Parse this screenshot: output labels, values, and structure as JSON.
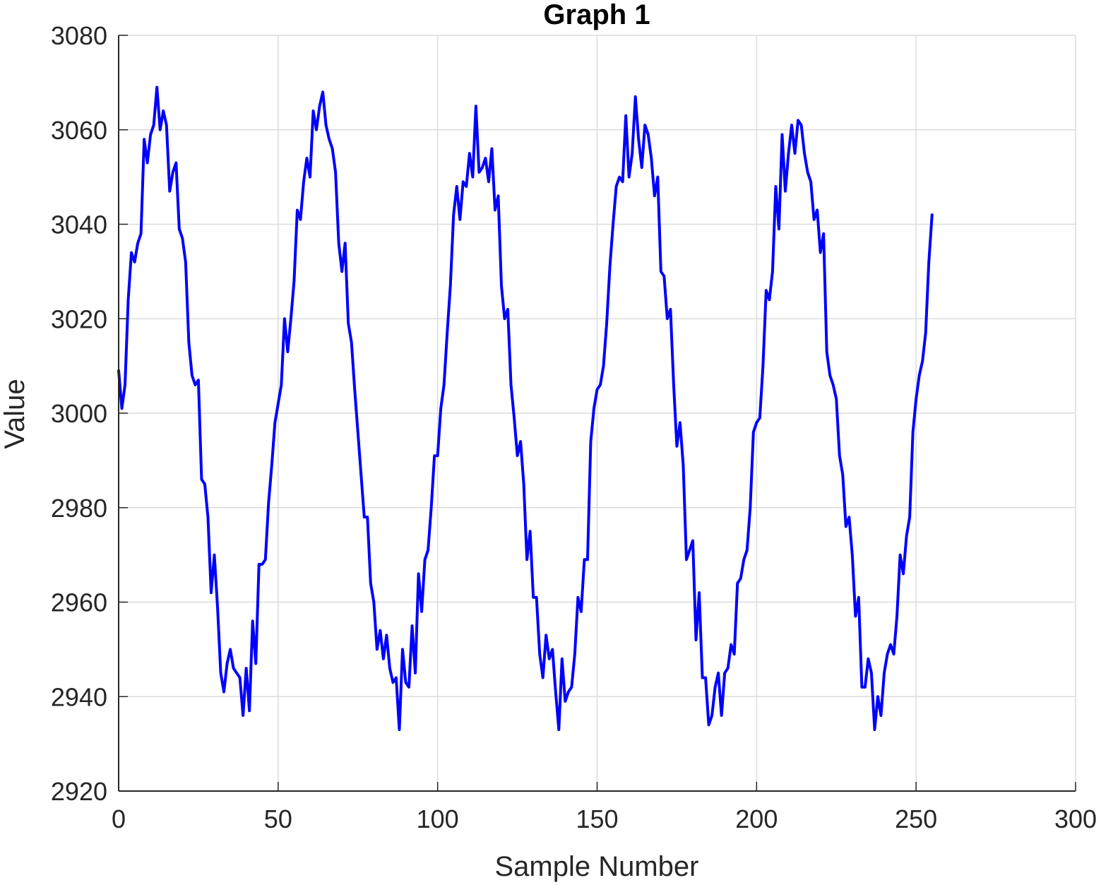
{
  "chart_data": {
    "type": "line",
    "title": "Graph  1",
    "xlabel": "Sample Number",
    "ylabel": "Value",
    "xlim": [
      0,
      300
    ],
    "ylim": [
      2920,
      3080
    ],
    "xticks": [
      0,
      50,
      100,
      150,
      200,
      250,
      300
    ],
    "yticks": [
      2920,
      2940,
      2960,
      2980,
      3000,
      3020,
      3040,
      3060,
      3080
    ],
    "grid": true,
    "legend": "none",
    "colors": {
      "series": "#0000ff",
      "axis": "#262626",
      "grid": "#dcdcdc"
    },
    "series": [
      {
        "x": [
          0,
          1,
          2,
          3,
          4,
          5,
          6,
          7,
          8,
          9,
          10,
          11,
          12,
          13,
          14,
          15,
          16,
          17,
          18,
          19,
          20,
          21,
          22,
          23,
          24,
          25,
          26,
          27,
          28,
          29,
          30,
          31,
          32,
          33,
          34,
          35,
          36,
          37,
          38,
          39,
          40,
          41,
          42,
          43,
          44,
          45,
          46,
          47,
          48,
          49,
          50,
          51,
          52,
          53,
          54,
          55,
          56,
          57,
          58,
          59,
          60,
          61,
          62,
          63,
          64,
          65,
          66,
          67,
          68,
          69,
          70,
          71,
          72,
          73,
          74,
          75,
          76,
          77,
          78,
          79,
          80,
          81,
          82,
          83,
          84,
          85,
          86,
          87,
          88,
          89,
          90,
          91,
          92,
          93,
          94,
          95,
          96,
          97,
          98,
          99,
          100,
          101,
          102,
          103,
          104,
          105,
          106,
          107,
          108,
          109,
          110,
          111,
          112,
          113,
          114,
          115,
          116,
          117,
          118,
          119,
          120,
          121,
          122,
          123,
          124,
          125,
          126,
          127,
          128,
          129,
          130,
          131,
          132,
          133,
          134,
          135,
          136,
          137,
          138,
          139,
          140,
          141,
          142,
          143,
          144,
          145,
          146,
          147,
          148,
          149,
          150,
          151,
          152,
          153,
          154,
          155,
          156,
          157,
          158,
          159,
          160,
          161,
          162,
          163,
          164,
          165,
          166,
          167,
          168,
          169,
          170,
          171,
          172,
          173,
          174,
          175,
          176,
          177,
          178,
          179,
          180,
          181,
          182,
          183,
          184,
          185,
          186,
          187,
          188,
          189,
          190,
          191,
          192,
          193,
          194,
          195,
          196,
          197,
          198,
          199,
          200,
          201,
          202,
          203,
          204,
          205,
          206,
          207,
          208,
          209,
          210,
          211,
          212,
          213,
          214,
          215,
          216,
          217,
          218,
          219,
          220,
          221,
          222,
          223,
          224,
          225,
          226,
          227,
          228,
          229,
          230,
          231,
          232,
          233,
          234,
          235,
          236,
          237,
          238,
          239,
          240,
          241,
          242,
          243,
          244,
          245,
          246,
          247,
          248,
          249,
          250,
          251,
          252,
          253,
          254,
          255
        ],
        "y": [
          3009,
          3001,
          3006,
          3024,
          3034,
          3032,
          3036,
          3038,
          3058,
          3053,
          3059,
          3061,
          3069,
          3060,
          3064,
          3061,
          3047,
          3051,
          3053,
          3039,
          3037,
          3032,
          3015,
          3008,
          3006,
          3007,
          2986,
          2985,
          2978,
          2962,
          2970,
          2959,
          2945,
          2941,
          2947,
          2950,
          2946,
          2945,
          2944,
          2936,
          2946,
          2937,
          2956,
          2947,
          2968,
          2968,
          2969,
          2981,
          2989,
          2998,
          3002,
          3006,
          3020,
          3013,
          3020,
          3028,
          3043,
          3041,
          3049,
          3054,
          3050,
          3064,
          3060,
          3065,
          3068,
          3061,
          3058,
          3056,
          3051,
          3036,
          3030,
          3036,
          3019,
          3015,
          3005,
          2996,
          2987,
          2978,
          2978,
          2964,
          2960,
          2950,
          2954,
          2948,
          2953,
          2946,
          2943,
          2944,
          2933,
          2950,
          2943,
          2942,
          2955,
          2945,
          2966,
          2958,
          2969,
          2971,
          2980,
          2991,
          2991,
          3001,
          3006,
          3017,
          3027,
          3042,
          3048,
          3041,
          3049,
          3048,
          3055,
          3050,
          3065,
          3051,
          3052,
          3054,
          3049,
          3056,
          3043,
          3046,
          3027,
          3020,
          3022,
          3006,
          2999,
          2991,
          2994,
          2985,
          2969,
          2975,
          2961,
          2961,
          2949,
          2944,
          2953,
          2948,
          2950,
          2941,
          2933,
          2948,
          2939,
          2941,
          2942,
          2949,
          2961,
          2958,
          2969,
          2969,
          2994,
          3001,
          3005,
          3006,
          3010,
          3019,
          3031,
          3040,
          3048,
          3050,
          3049,
          3063,
          3050,
          3055,
          3067,
          3058,
          3052,
          3061,
          3059,
          3054,
          3046,
          3050,
          3030,
          3029,
          3020,
          3022,
          3006,
          2993,
          2998,
          2989,
          2969,
          2971,
          2973,
          2952,
          2962,
          2944,
          2944,
          2934,
          2936,
          2942,
          2945,
          2936,
          2945,
          2946,
          2951,
          2949,
          2964,
          2965,
          2969,
          2971,
          2980,
          2996,
          2998,
          2999,
          3010,
          3026,
          3024,
          3030,
          3048,
          3039,
          3059,
          3047,
          3055,
          3061,
          3055,
          3062,
          3061,
          3055,
          3051,
          3049,
          3041,
          3043,
          3034,
          3038,
          3013,
          3008,
          3006,
          3003,
          2991,
          2987,
          2976,
          2978,
          2970,
          2957,
          2961,
          2942,
          2942,
          2948,
          2945,
          2933,
          2940,
          2936,
          2945,
          2949,
          2951,
          2949,
          2957,
          2970,
          2966,
          2974,
          2978,
          2996,
          3003,
          3008,
          3011,
          3017,
          3032,
          3042
        ]
      }
    ]
  }
}
